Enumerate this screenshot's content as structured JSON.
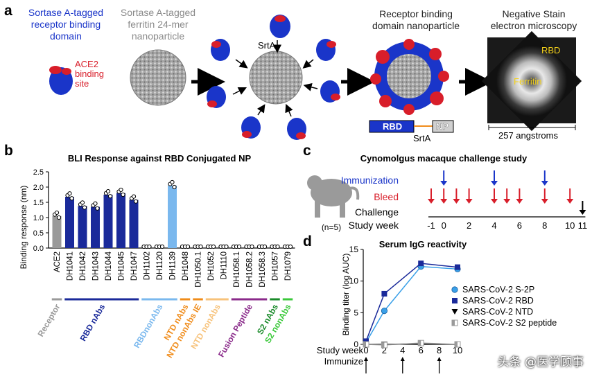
{
  "panel_a": {
    "letter": "a",
    "sortase_rbd": [
      "Sortase A-tagged",
      "receptor binding",
      "domain"
    ],
    "ace2_site": [
      "ACE2",
      "binding",
      "site"
    ],
    "ferritin": [
      "Sortase A-tagged",
      "ferritin 24-mer",
      "nanoparticle"
    ],
    "srta_top": "SrtA",
    "rbd_np_title": [
      "Receptor binding",
      "domain nanoparticle"
    ],
    "rbd_box": "RBD",
    "np_box": "NP",
    "srta_bottom": "SrtA",
    "ns_title": [
      "Negative Stain",
      "electron microscopy"
    ],
    "em_rbd": "RBD",
    "em_ferritin": "Ferritin",
    "scale_label": "257 angstroms",
    "colors": {
      "rbd_blue": "#1a35c9",
      "ace2_red": "#d81e2a",
      "ferritin_grey": "#9a9a9a"
    }
  },
  "panel_b": {
    "letter": "b",
    "chart_data": {
      "type": "bar",
      "title": "BLI Response against RBD Conjugated NP",
      "ylabel": "Binding response (nm)",
      "ylim": [
        0,
        2.5
      ],
      "yticks": [
        "0.0",
        "0.5",
        "1.0",
        "1.5",
        "2.0",
        "2.5"
      ],
      "categories": [
        "ACE2",
        "DH1041",
        "DH1042",
        "DH1043",
        "DH1044",
        "DH1045",
        "DH1047",
        "DH1102",
        "DH1120",
        "DH1139",
        "DH1048",
        "DH1050.1",
        "DH1052",
        "DH1110",
        "DH1058.1",
        "DH1058.2",
        "DH1058.3",
        "DH1057",
        "DH1079"
      ],
      "values": [
        1.05,
        1.68,
        1.38,
        1.35,
        1.75,
        1.8,
        1.58,
        0.0,
        0.0,
        2.05,
        0.0,
        0.0,
        0.0,
        0.0,
        0.0,
        0.0,
        0.0,
        0.0,
        0.0
      ],
      "bar_colors": [
        "#9a9a9a",
        "#1a2a9a",
        "#1a2a9a",
        "#1a2a9a",
        "#1a2a9a",
        "#1a2a9a",
        "#1a2a9a",
        "#7ab8ee",
        "#7ab8ee",
        "#7ab8ee",
        "#f08c1a",
        "#f08c1a",
        "#f08c1a",
        "#f08c1a",
        "#8a2a8a",
        "#8a2a8a",
        "#8a2a8a",
        "#1a8a2a",
        "#1a8a2a"
      ],
      "groups": [
        {
          "name": "Receptor",
          "start": 0,
          "end": 0,
          "color": "#9a9a9a"
        },
        {
          "name": "RBD nAbs",
          "start": 1,
          "end": 6,
          "color": "#1a2a9a"
        },
        {
          "name": "RBDnonAbs",
          "start": 7,
          "end": 9,
          "color": "#7ab8ee"
        },
        {
          "name": "NTD nAbs",
          "start": 10,
          "end": 10,
          "color": "#f08c1a"
        },
        {
          "name": "NTD nonAbs IE",
          "start": 11,
          "end": 11,
          "color": "#f08c1a"
        },
        {
          "name": "NTD nonAbs",
          "start": 12,
          "end": 13,
          "color": "#f7c27a"
        },
        {
          "name": "Fusion Peptide",
          "start": 14,
          "end": 16,
          "color": "#8a2a8a"
        },
        {
          "name": "S2 nAbs",
          "start": 17,
          "end": 17,
          "color": "#1a8a2a"
        },
        {
          "name": "S2 nonAbs",
          "start": 18,
          "end": 18,
          "color": "#3ac83a"
        }
      ]
    }
  },
  "panel_c": {
    "letter": "c",
    "title": "Cynomolgus macaque challenge study",
    "immunization": "Immunization",
    "bleed": "Bleed",
    "challenge": "Challenge",
    "study_week": "Study week",
    "n": "(n=5)",
    "week_ticks": [
      "-1",
      "0",
      "2",
      "4",
      "6",
      "8",
      "10",
      "11"
    ],
    "immunization_weeks": [
      0,
      4,
      8
    ],
    "bleed_weeks": [
      -1,
      0,
      1,
      2,
      4,
      5,
      6,
      8,
      10
    ],
    "challenge_week": 11,
    "colors": {
      "immunization": "#1a35c9",
      "bleed": "#d81e2a"
    }
  },
  "panel_d": {
    "letter": "d",
    "chart_data": {
      "type": "line",
      "title": "Serum IgG reactivity",
      "ylabel": "Binding titer (log AUC)",
      "xlabel": "Study week",
      "x": [
        0,
        2,
        6,
        10
      ],
      "xticks": [
        "0",
        "2",
        "4",
        "6",
        "8",
        "10"
      ],
      "yticks": [
        "0",
        "5",
        "10",
        "15"
      ],
      "ylim": [
        0,
        15
      ],
      "xlim": [
        0,
        10
      ],
      "immunize_label": "Immunize",
      "immunize_weeks": [
        0,
        4,
        8
      ],
      "series": [
        {
          "name": "SARS-CoV-2 S-2P",
          "values": [
            0.3,
            5.3,
            12.3,
            11.9
          ],
          "color": "#3aa0e8",
          "marker": "circle"
        },
        {
          "name": "SARS-CoV-2 RBD",
          "values": [
            0.5,
            8.0,
            12.8,
            12.2
          ],
          "color": "#1a2a9a",
          "marker": "square"
        },
        {
          "name": "SARS-CoV-2 NTD",
          "values": [
            0.0,
            0.0,
            0.1,
            0.0
          ],
          "color": "#000000",
          "marker": "triangle-down"
        },
        {
          "name": "SARS-CoV-2 S2 peptide",
          "values": [
            0.0,
            -0.1,
            0.2,
            0.0
          ],
          "color": "#9a9a9a",
          "marker": "half-square"
        }
      ]
    }
  },
  "watermark": "头条 @医学顾事"
}
